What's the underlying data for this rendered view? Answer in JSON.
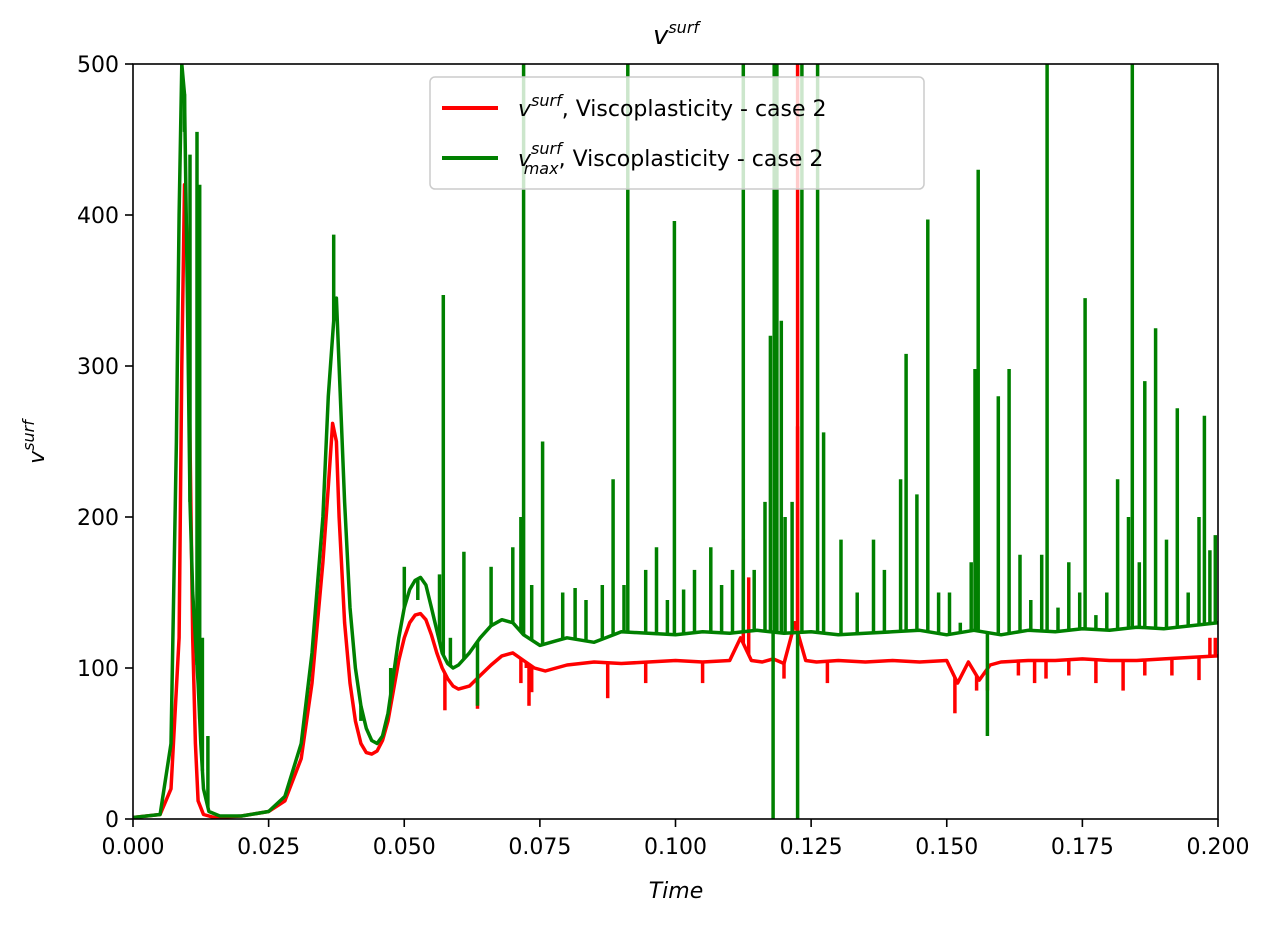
{
  "chart_data": {
    "type": "line",
    "title_base": "v",
    "title_sup": "surf",
    "xlabel": "Time",
    "ylabel_base": "v",
    "ylabel_sup": "surf",
    "xlim": [
      0.0,
      0.2
    ],
    "ylim": [
      0,
      500
    ],
    "xticks": [
      0.0,
      0.025,
      0.05,
      0.075,
      0.1,
      0.125,
      0.15,
      0.175,
      0.2
    ],
    "xtick_labels": [
      "0.000",
      "0.025",
      "0.050",
      "0.075",
      "0.100",
      "0.125",
      "0.150",
      "0.175",
      "0.200"
    ],
    "yticks": [
      0,
      100,
      200,
      300,
      400,
      500
    ],
    "ytick_labels": [
      "0",
      "100",
      "200",
      "300",
      "400",
      "500"
    ],
    "grid": false,
    "legend_position": "top-center",
    "series": [
      {
        "legend_base": "v",
        "legend_sup": "surf",
        "legend_sub": "",
        "legend_rest": ", Viscoplasticity - case 2",
        "color": "#ff0000",
        "x": [
          0.0,
          0.005,
          0.007,
          0.0085,
          0.009,
          0.0095,
          0.01,
          0.0105,
          0.011,
          0.0115,
          0.012,
          0.013,
          0.015,
          0.02,
          0.025,
          0.028,
          0.031,
          0.033,
          0.035,
          0.036,
          0.0368,
          0.0375,
          0.038,
          0.039,
          0.04,
          0.041,
          0.042,
          0.043,
          0.044,
          0.045,
          0.046,
          0.047,
          0.048,
          0.049,
          0.05,
          0.051,
          0.052,
          0.053,
          0.054,
          0.055,
          0.056,
          0.057,
          0.058,
          0.059,
          0.06,
          0.062,
          0.064,
          0.066,
          0.068,
          0.07,
          0.072,
          0.074,
          0.076,
          0.078,
          0.08,
          0.085,
          0.09,
          0.095,
          0.1,
          0.105,
          0.11,
          0.112,
          0.114,
          0.116,
          0.118,
          0.12,
          0.122,
          0.124,
          0.126,
          0.13,
          0.135,
          0.14,
          0.145,
          0.15,
          0.152,
          0.154,
          0.156,
          0.158,
          0.16,
          0.165,
          0.17,
          0.175,
          0.18,
          0.185,
          0.19,
          0.195,
          0.2
        ],
        "y": [
          1,
          3,
          20,
          120,
          300,
          420,
          380,
          250,
          120,
          50,
          12,
          3,
          1,
          2,
          5,
          12,
          40,
          90,
          170,
          220,
          262,
          250,
          200,
          130,
          90,
          65,
          50,
          44,
          43,
          45,
          52,
          65,
          85,
          105,
          120,
          130,
          135,
          136,
          132,
          122,
          110,
          100,
          93,
          88,
          86,
          88,
          95,
          102,
          108,
          110,
          105,
          100,
          98,
          100,
          102,
          104,
          103,
          104,
          105,
          104,
          105,
          120,
          105,
          104,
          106,
          103,
          130,
          105,
          104,
          105,
          104,
          105,
          104,
          105,
          90,
          104,
          92,
          102,
          104,
          105,
          105,
          106,
          105,
          105,
          106,
          107,
          108
        ]
      },
      {
        "legend_base": "v",
        "legend_sup": "surf",
        "legend_sub": "max",
        "legend_rest": ", Viscoplasticity - case 2",
        "color": "#008000",
        "x": [
          0.0,
          0.005,
          0.007,
          0.008,
          0.0085,
          0.009,
          0.0095,
          0.01,
          0.0105,
          0.011,
          0.0115,
          0.012,
          0.0125,
          0.013,
          0.014,
          0.016,
          0.02,
          0.025,
          0.028,
          0.031,
          0.033,
          0.035,
          0.036,
          0.037,
          0.0375,
          0.038,
          0.039,
          0.04,
          0.041,
          0.042,
          0.043,
          0.044,
          0.045,
          0.046,
          0.047,
          0.048,
          0.049,
          0.05,
          0.051,
          0.052,
          0.053,
          0.054,
          0.055,
          0.056,
          0.057,
          0.058,
          0.059,
          0.06,
          0.062,
          0.064,
          0.066,
          0.068,
          0.07,
          0.072,
          0.075,
          0.078,
          0.08,
          0.085,
          0.09,
          0.095,
          0.1,
          0.105,
          0.11,
          0.115,
          0.12,
          0.125,
          0.13,
          0.135,
          0.14,
          0.145,
          0.15,
          0.155,
          0.16,
          0.165,
          0.17,
          0.175,
          0.18,
          0.185,
          0.19,
          0.195,
          0.2
        ],
        "y": [
          1,
          3,
          50,
          250,
          400,
          500,
          480,
          350,
          210,
          150,
          120,
          90,
          50,
          20,
          5,
          2,
          2,
          5,
          15,
          50,
          110,
          200,
          280,
          330,
          345,
          300,
          210,
          140,
          100,
          75,
          60,
          52,
          50,
          55,
          70,
          95,
          120,
          140,
          152,
          158,
          160,
          155,
          140,
          125,
          110,
          103,
          100,
          102,
          110,
          120,
          128,
          132,
          130,
          122,
          115,
          118,
          120,
          117,
          124,
          123,
          122,
          124,
          123,
          125,
          123,
          124,
          122,
          123,
          124,
          125,
          122,
          125,
          122,
          125,
          124,
          126,
          125,
          127,
          126,
          128,
          130
        ]
      }
    ],
    "spikes": {
      "red": [
        [
          0.0575,
          72
        ],
        [
          0.0635,
          73
        ],
        [
          0.0715,
          90
        ],
        [
          0.0725,
          100
        ],
        [
          0.0735,
          84
        ],
        [
          0.073,
          75
        ],
        [
          0.0875,
          80
        ],
        [
          0.0945,
          90
        ],
        [
          0.105,
          90
        ],
        [
          0.1125,
          185
        ],
        [
          0.1135,
          160
        ],
        [
          0.12,
          93
        ],
        [
          0.1225,
          500
        ],
        [
          0.1225,
          260
        ],
        [
          0.128,
          90
        ],
        [
          0.1515,
          70
        ],
        [
          0.1555,
          85
        ],
        [
          0.1575,
          85
        ],
        [
          0.1632,
          95
        ],
        [
          0.1662,
          90
        ],
        [
          0.1683,
          93
        ],
        [
          0.1725,
          95
        ],
        [
          0.1775,
          90
        ],
        [
          0.1825,
          85
        ],
        [
          0.1865,
          95
        ],
        [
          0.1915,
          95
        ],
        [
          0.1965,
          92
        ],
        [
          0.1985,
          120
        ],
        [
          0.1995,
          120
        ]
      ],
      "green": [
        [
          0.0095,
          455
        ],
        [
          0.0105,
          440
        ],
        [
          0.0118,
          455
        ],
        [
          0.0123,
          420
        ],
        [
          0.0128,
          120
        ],
        [
          0.0138,
          55
        ],
        [
          0.037,
          387
        ],
        [
          0.042,
          65
        ],
        [
          0.0475,
          100
        ],
        [
          0.05,
          167
        ],
        [
          0.0525,
          145
        ],
        [
          0.0565,
          162
        ],
        [
          0.0572,
          347
        ],
        [
          0.0585,
          120
        ],
        [
          0.061,
          177
        ],
        [
          0.0635,
          75
        ],
        [
          0.066,
          167
        ],
        [
          0.07,
          180
        ],
        [
          0.0715,
          200
        ],
        [
          0.072,
          500
        ],
        [
          0.0735,
          155
        ],
        [
          0.0755,
          250
        ],
        [
          0.0792,
          150
        ],
        [
          0.0815,
          153
        ],
        [
          0.0835,
          145
        ],
        [
          0.0865,
          155
        ],
        [
          0.0885,
          225
        ],
        [
          0.0905,
          155
        ],
        [
          0.0912,
          500
        ],
        [
          0.0945,
          165
        ],
        [
          0.0965,
          180
        ],
        [
          0.0985,
          145
        ],
        [
          0.0998,
          396
        ],
        [
          0.1015,
          152
        ],
        [
          0.1035,
          165
        ],
        [
          0.1065,
          180
        ],
        [
          0.1085,
          155
        ],
        [
          0.1105,
          165
        ],
        [
          0.1125,
          500
        ],
        [
          0.1145,
          165
        ],
        [
          0.1165,
          210
        ],
        [
          0.1175,
          320
        ],
        [
          0.118,
          0
        ],
        [
          0.1182,
          500
        ],
        [
          0.1187,
          500
        ],
        [
          0.1195,
          330
        ],
        [
          0.1202,
          200
        ],
        [
          0.1215,
          210
        ],
        [
          0.1225,
          0
        ],
        [
          0.1233,
          500
        ],
        [
          0.1262,
          500
        ],
        [
          0.1273,
          256
        ],
        [
          0.1305,
          185
        ],
        [
          0.1335,
          150
        ],
        [
          0.1365,
          185
        ],
        [
          0.1385,
          165
        ],
        [
          0.1415,
          225
        ],
        [
          0.1425,
          308
        ],
        [
          0.1445,
          215
        ],
        [
          0.1465,
          397
        ],
        [
          0.1485,
          150
        ],
        [
          0.1505,
          150
        ],
        [
          0.1525,
          130
        ],
        [
          0.1545,
          170
        ],
        [
          0.1552,
          298
        ],
        [
          0.1558,
          430
        ],
        [
          0.1575,
          55
        ],
        [
          0.1595,
          280
        ],
        [
          0.1615,
          298
        ],
        [
          0.1635,
          175
        ],
        [
          0.1655,
          145
        ],
        [
          0.1675,
          175
        ],
        [
          0.1685,
          500
        ],
        [
          0.1705,
          140
        ],
        [
          0.1725,
          170
        ],
        [
          0.1745,
          150
        ],
        [
          0.1755,
          345
        ],
        [
          0.1775,
          135
        ],
        [
          0.1795,
          150
        ],
        [
          0.1815,
          225
        ],
        [
          0.1835,
          200
        ],
        [
          0.1842,
          500
        ],
        [
          0.1855,
          170
        ],
        [
          0.1865,
          290
        ],
        [
          0.1885,
          325
        ],
        [
          0.1905,
          185
        ],
        [
          0.1925,
          272
        ],
        [
          0.1945,
          150
        ],
        [
          0.1965,
          200
        ],
        [
          0.1975,
          267
        ],
        [
          0.1985,
          178
        ],
        [
          0.1995,
          188
        ]
      ]
    }
  }
}
